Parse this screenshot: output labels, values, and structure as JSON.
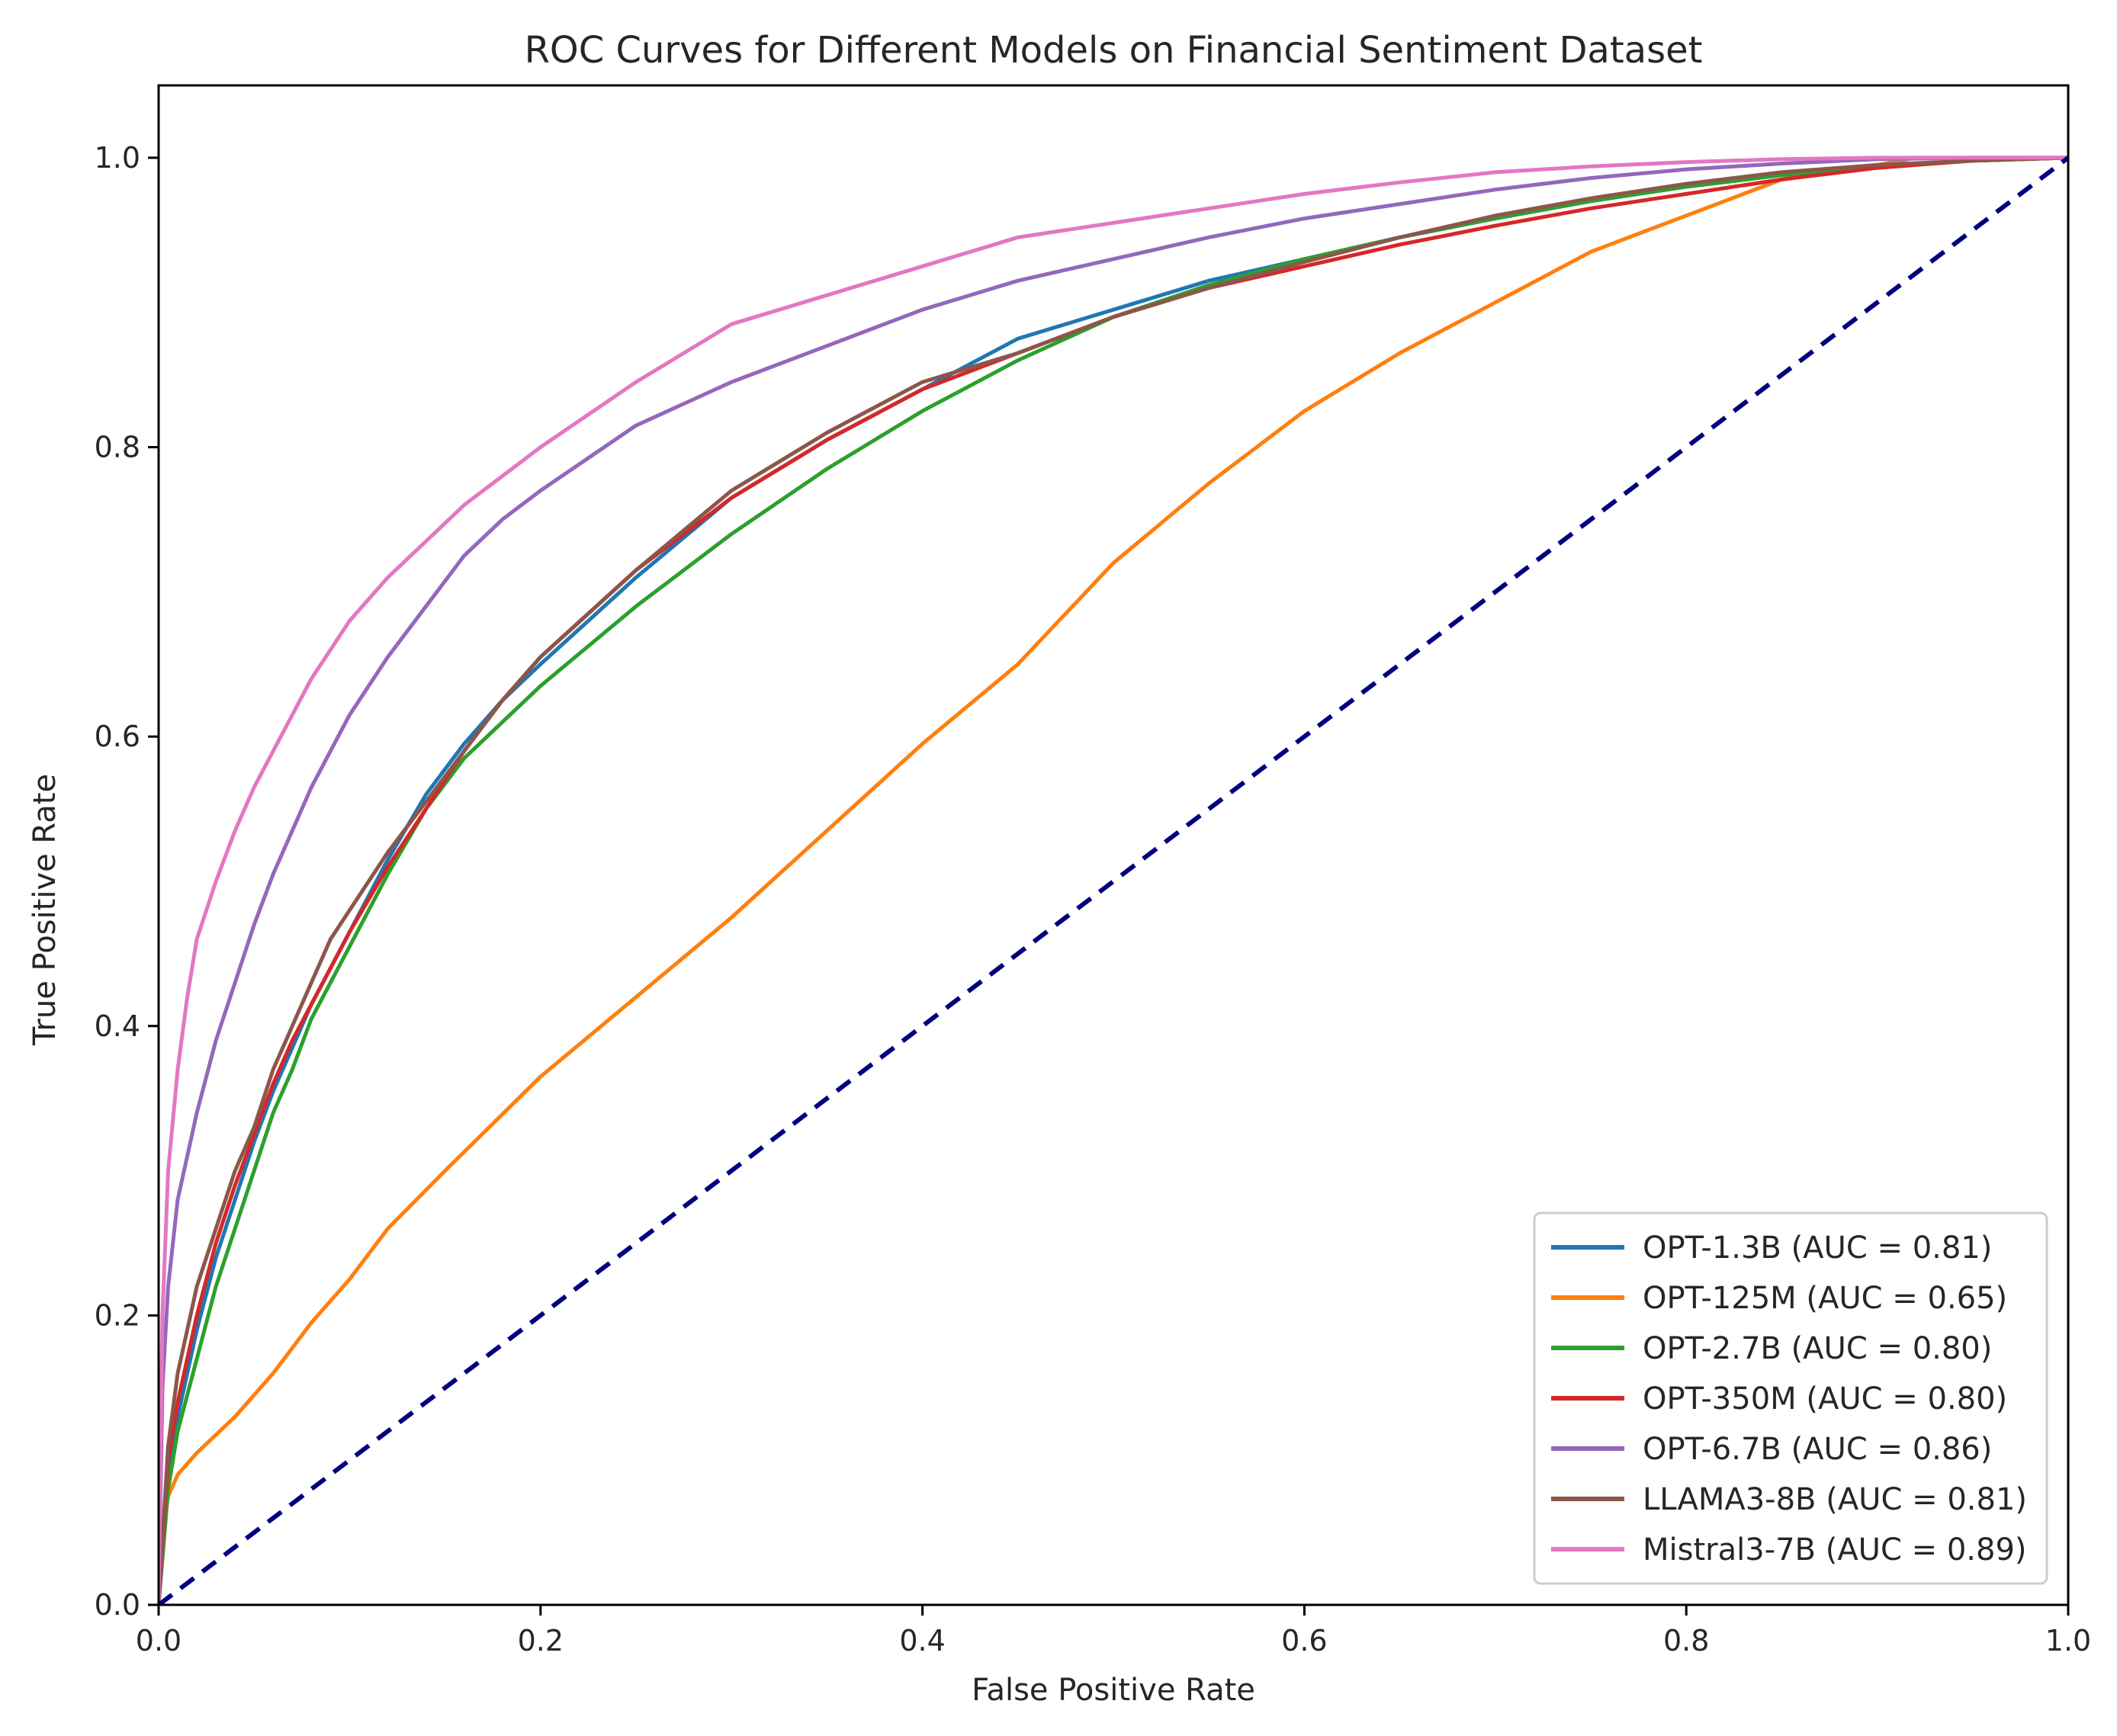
{
  "chart_data": {
    "type": "line",
    "title": "ROC Curves for Different Models on Financial Sentiment Dataset",
    "xlabel": "False Positive Rate",
    "ylabel": "True Positive Rate",
    "xlim": [
      0.0,
      1.0
    ],
    "ylim": [
      0.0,
      1.05
    ],
    "xticks": [
      "0.0",
      "0.2",
      "0.4",
      "0.6",
      "0.8",
      "1.0"
    ],
    "yticks": [
      "0.0",
      "0.2",
      "0.4",
      "0.6",
      "0.8",
      "1.0"
    ],
    "grid": false,
    "legend_position": "lower-right",
    "series": [
      {
        "name": "OPT-1.3B (AUC = 0.81)",
        "color": "#1f77b4",
        "x": [
          0.0,
          0.005,
          0.01,
          0.02,
          0.03,
          0.04,
          0.05,
          0.06,
          0.07,
          0.08,
          0.09,
          0.1,
          0.12,
          0.14,
          0.16,
          0.18,
          0.2,
          0.25,
          0.3,
          0.35,
          0.4,
          0.45,
          0.5,
          0.55,
          0.6,
          0.65,
          0.7,
          0.75,
          0.8,
          0.85,
          0.9,
          0.95,
          1.0
        ],
        "y": [
          0.0,
          0.09,
          0.13,
          0.19,
          0.24,
          0.28,
          0.32,
          0.355,
          0.385,
          0.415,
          0.44,
          0.465,
          0.515,
          0.56,
          0.595,
          0.625,
          0.65,
          0.71,
          0.765,
          0.805,
          0.84,
          0.875,
          0.895,
          0.915,
          0.93,
          0.945,
          0.958,
          0.97,
          0.98,
          0.988,
          0.994,
          0.998,
          1.0
        ]
      },
      {
        "name": "OPT-125M (AUC = 0.65)",
        "color": "#ff7f0e",
        "x": [
          0.0,
          0.002,
          0.005,
          0.01,
          0.02,
          0.04,
          0.06,
          0.08,
          0.1,
          0.12,
          0.15,
          0.2,
          0.25,
          0.3,
          0.35,
          0.4,
          0.45,
          0.5,
          0.55,
          0.6,
          0.65,
          0.7,
          0.75,
          0.8,
          0.85,
          0.9,
          0.92,
          0.95,
          1.0
        ],
        "y": [
          0.0,
          0.05,
          0.075,
          0.09,
          0.105,
          0.13,
          0.16,
          0.195,
          0.225,
          0.26,
          0.3,
          0.365,
          0.42,
          0.475,
          0.535,
          0.595,
          0.65,
          0.72,
          0.775,
          0.825,
          0.865,
          0.9,
          0.935,
          0.96,
          0.985,
          0.995,
          1.0,
          1.0,
          1.0
        ]
      },
      {
        "name": "OPT-2.7B (AUC = 0.80)",
        "color": "#2ca02c",
        "x": [
          0.0,
          0.005,
          0.01,
          0.02,
          0.03,
          0.04,
          0.05,
          0.06,
          0.07,
          0.08,
          0.09,
          0.1,
          0.12,
          0.14,
          0.16,
          0.18,
          0.2,
          0.25,
          0.3,
          0.35,
          0.4,
          0.45,
          0.5,
          0.55,
          0.6,
          0.65,
          0.7,
          0.75,
          0.8,
          0.85,
          0.9,
          0.95,
          1.0
        ],
        "y": [
          0.0,
          0.08,
          0.12,
          0.17,
          0.22,
          0.26,
          0.3,
          0.34,
          0.37,
          0.405,
          0.43,
          0.455,
          0.505,
          0.55,
          0.585,
          0.61,
          0.635,
          0.69,
          0.74,
          0.785,
          0.825,
          0.86,
          0.89,
          0.912,
          0.93,
          0.945,
          0.958,
          0.97,
          0.98,
          0.988,
          0.994,
          0.998,
          1.0
        ]
      },
      {
        "name": "OPT-350M (AUC = 0.80)",
        "color": "#d62728",
        "x": [
          0.0,
          0.005,
          0.01,
          0.02,
          0.03,
          0.04,
          0.05,
          0.06,
          0.07,
          0.08,
          0.09,
          0.1,
          0.12,
          0.14,
          0.16,
          0.18,
          0.2,
          0.25,
          0.3,
          0.35,
          0.4,
          0.45,
          0.5,
          0.55,
          0.6,
          0.65,
          0.7,
          0.75,
          0.8,
          0.85,
          0.9,
          0.95,
          1.0
        ],
        "y": [
          0.0,
          0.1,
          0.14,
          0.2,
          0.25,
          0.29,
          0.325,
          0.36,
          0.39,
          0.415,
          0.44,
          0.465,
          0.51,
          0.55,
          0.59,
          0.625,
          0.655,
          0.715,
          0.765,
          0.805,
          0.84,
          0.865,
          0.89,
          0.91,
          0.925,
          0.94,
          0.953,
          0.965,
          0.975,
          0.985,
          0.993,
          0.998,
          1.0
        ]
      },
      {
        "name": "OPT-6.7B (AUC = 0.86)",
        "color": "#9467bd",
        "x": [
          0.0,
          0.002,
          0.005,
          0.01,
          0.02,
          0.03,
          0.04,
          0.05,
          0.06,
          0.07,
          0.08,
          0.09,
          0.1,
          0.12,
          0.14,
          0.16,
          0.18,
          0.2,
          0.25,
          0.3,
          0.35,
          0.4,
          0.45,
          0.5,
          0.55,
          0.6,
          0.65,
          0.7,
          0.75,
          0.8,
          0.85,
          0.9,
          0.95,
          1.0
        ],
        "y": [
          0.0,
          0.15,
          0.22,
          0.28,
          0.34,
          0.39,
          0.43,
          0.47,
          0.505,
          0.535,
          0.565,
          0.59,
          0.615,
          0.655,
          0.69,
          0.725,
          0.75,
          0.77,
          0.815,
          0.845,
          0.87,
          0.895,
          0.915,
          0.93,
          0.945,
          0.958,
          0.968,
          0.978,
          0.986,
          0.992,
          0.996,
          0.999,
          1.0,
          1.0
        ]
      },
      {
        "name": "LLAMA3-8B (AUC = 0.81)",
        "color": "#8c564b",
        "x": [
          0.0,
          0.005,
          0.01,
          0.02,
          0.03,
          0.04,
          0.05,
          0.06,
          0.07,
          0.08,
          0.09,
          0.1,
          0.12,
          0.14,
          0.16,
          0.18,
          0.2,
          0.25,
          0.3,
          0.35,
          0.4,
          0.45,
          0.5,
          0.55,
          0.6,
          0.65,
          0.7,
          0.75,
          0.8,
          0.85,
          0.9,
          0.95,
          1.0
        ],
        "y": [
          0.0,
          0.11,
          0.16,
          0.22,
          0.26,
          0.3,
          0.33,
          0.37,
          0.4,
          0.43,
          0.46,
          0.48,
          0.52,
          0.555,
          0.59,
          0.625,
          0.655,
          0.715,
          0.77,
          0.81,
          0.845,
          0.865,
          0.89,
          0.91,
          0.928,
          0.945,
          0.96,
          0.972,
          0.982,
          0.99,
          0.995,
          0.998,
          1.0
        ]
      },
      {
        "name": "Mistral3-7B (AUC = 0.89)",
        "color": "#e377c2",
        "x": [
          0.0,
          0.002,
          0.005,
          0.01,
          0.015,
          0.02,
          0.03,
          0.04,
          0.05,
          0.06,
          0.07,
          0.08,
          0.09,
          0.1,
          0.12,
          0.14,
          0.16,
          0.18,
          0.2,
          0.25,
          0.3,
          0.35,
          0.4,
          0.45,
          0.5,
          0.55,
          0.6,
          0.65,
          0.7,
          0.75,
          0.8,
          0.85,
          0.9,
          0.95,
          1.0
        ],
        "y": [
          0.0,
          0.2,
          0.3,
          0.37,
          0.42,
          0.46,
          0.5,
          0.535,
          0.565,
          0.59,
          0.615,
          0.64,
          0.66,
          0.68,
          0.71,
          0.735,
          0.76,
          0.78,
          0.8,
          0.845,
          0.885,
          0.905,
          0.925,
          0.945,
          0.955,
          0.965,
          0.975,
          0.983,
          0.99,
          0.994,
          0.997,
          0.999,
          1.0,
          1.0,
          1.0
        ]
      }
    ],
    "reference_line": {
      "x": [
        0.0,
        1.0
      ],
      "y": [
        0.0,
        1.0
      ],
      "color": "#000080",
      "style": "dashed"
    }
  }
}
